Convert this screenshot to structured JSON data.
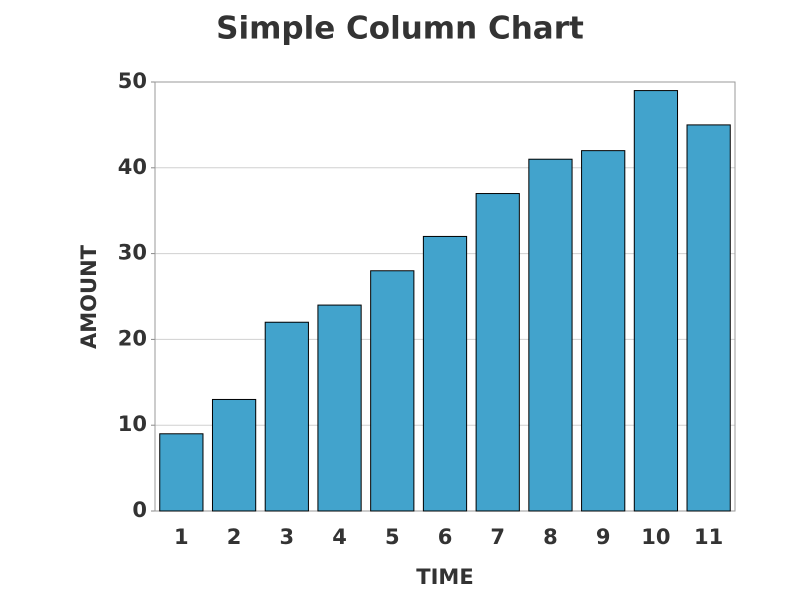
{
  "chart_data": {
    "type": "bar",
    "title": "Simple Column Chart",
    "x_label": "TIME",
    "y_label": "AMOUNT",
    "categories": [
      "1",
      "2",
      "3",
      "4",
      "5",
      "6",
      "7",
      "8",
      "9",
      "10",
      "11"
    ],
    "values": [
      9,
      13,
      22,
      24,
      28,
      32,
      37,
      41,
      42,
      49,
      45
    ],
    "color": "#42a3cc",
    "ylim": [
      0,
      50
    ],
    "yticks": [
      0,
      10,
      20,
      30,
      40,
      50
    ],
    "grid": true
  }
}
